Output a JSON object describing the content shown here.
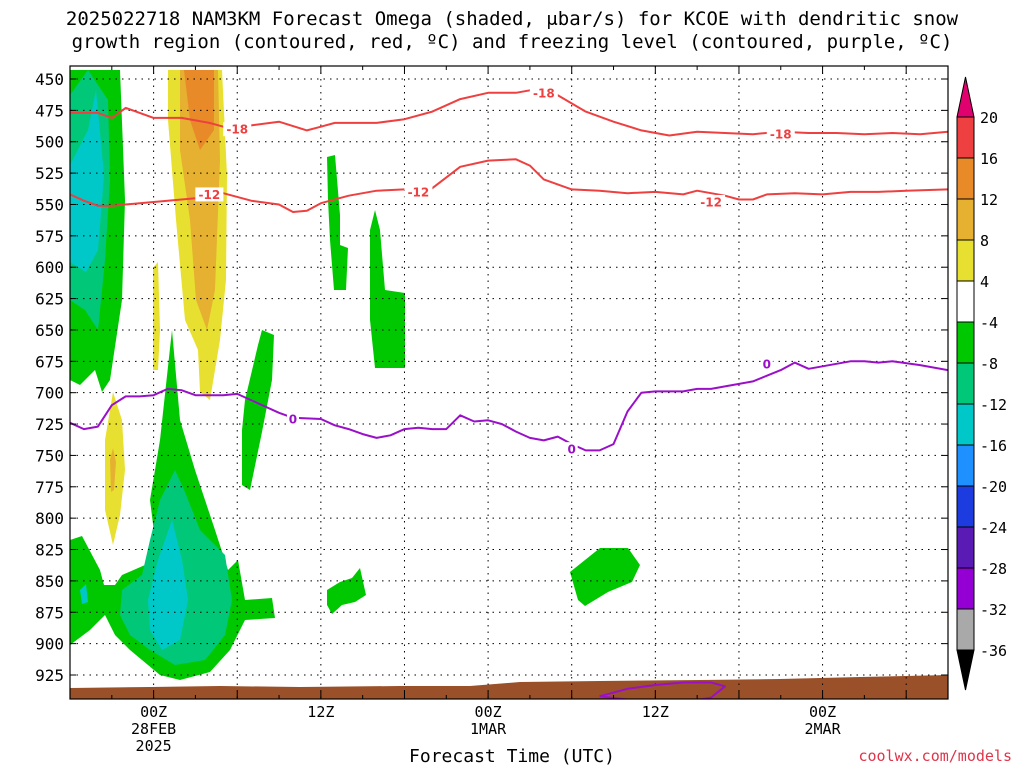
{
  "title": {
    "line1": "2025022718 NAM3KM Forecast Omega (shaded, μbar/s) for KCOE with dendritic snow",
    "line2": "growth region (contoured, red, ºC) and freezing level (contoured, purple, ºC)"
  },
  "xaxis_title": "Forecast Time (UTC)",
  "credit": "coolwx.com/models",
  "chart_data": {
    "type": "heatmap",
    "x_unit": "forecast hour from 2025022718",
    "y_unit": "hPa",
    "xlim": [
      0,
      63
    ],
    "y_ticks": [
      450,
      475,
      500,
      525,
      550,
      575,
      600,
      625,
      650,
      675,
      700,
      725,
      750,
      775,
      800,
      825,
      850,
      875,
      900,
      925
    ],
    "x_ticks": [
      {
        "hour": 6,
        "l1": "00Z",
        "l2": "28FEB",
        "l3": "2025"
      },
      {
        "hour": 18,
        "l1": "12Z",
        "l2": "",
        "l3": ""
      },
      {
        "hour": 30,
        "l1": "00Z",
        "l2": "1MAR",
        "l3": ""
      },
      {
        "hour": 42,
        "l1": "12Z",
        "l2": "",
        "l3": ""
      },
      {
        "hour": 54,
        "l1": "00Z",
        "l2": "2MAR",
        "l3": ""
      }
    ],
    "grid": true,
    "colorbar": {
      "levels": [
        -36,
        -32,
        -28,
        -24,
        -20,
        -16,
        -12,
        -8,
        -4,
        4,
        8,
        12,
        16,
        20
      ],
      "colors": [
        "#000000",
        "#a9a9a9",
        "#9400d3",
        "#5a1ab4",
        "#1c3ce0",
        "#1e90ff",
        "#00c8c8",
        "#00c878",
        "#00c800",
        "#ffffff",
        "#e8e030",
        "#e6b030",
        "#e88a28",
        "#ee4040",
        "#e0006e"
      ]
    },
    "contours": [
      {
        "label": "-18",
        "color": "#ee4040",
        "pts": [
          [
            0,
            477
          ],
          [
            2,
            477
          ],
          [
            3,
            481
          ],
          [
            4,
            473
          ],
          [
            6,
            481
          ],
          [
            8,
            481
          ],
          [
            10,
            485
          ],
          [
            11,
            488
          ],
          [
            13,
            487
          ],
          [
            15,
            484
          ],
          [
            17,
            491
          ],
          [
            18,
            488
          ],
          [
            19,
            485
          ],
          [
            22,
            485
          ],
          [
            24,
            482
          ],
          [
            26,
            476
          ],
          [
            28,
            466
          ],
          [
            30,
            461
          ],
          [
            32,
            461
          ],
          [
            33,
            459
          ],
          [
            34,
            458
          ],
          [
            35,
            463
          ],
          [
            37,
            476
          ],
          [
            39,
            484
          ],
          [
            41,
            491
          ],
          [
            43,
            495
          ],
          [
            45,
            492
          ],
          [
            47,
            493
          ],
          [
            49,
            494
          ],
          [
            51,
            492
          ],
          [
            53,
            493
          ],
          [
            55,
            493
          ],
          [
            57,
            494
          ],
          [
            59,
            493
          ],
          [
            61,
            494
          ],
          [
            63,
            492
          ]
        ],
        "label_pos": [
          [
            12,
            490
          ],
          [
            34,
            461
          ],
          [
            51,
            494
          ]
        ]
      },
      {
        "label": "-12",
        "color": "#ee4040",
        "pts": [
          [
            0,
            542
          ],
          [
            1,
            547
          ],
          [
            2,
            551
          ],
          [
            3,
            551
          ],
          [
            5,
            549
          ],
          [
            7,
            547
          ],
          [
            9,
            545
          ],
          [
            10,
            540
          ],
          [
            11,
            541
          ],
          [
            13,
            547
          ],
          [
            15,
            550
          ],
          [
            16,
            556
          ],
          [
            17,
            555
          ],
          [
            18,
            549
          ],
          [
            20,
            543
          ],
          [
            22,
            539
          ],
          [
            24,
            538
          ],
          [
            26,
            537
          ],
          [
            28,
            520
          ],
          [
            30,
            515
          ],
          [
            32,
            514
          ],
          [
            33,
            519
          ],
          [
            34,
            530
          ],
          [
            36,
            538
          ],
          [
            38,
            539
          ],
          [
            40,
            541
          ],
          [
            42,
            540
          ],
          [
            44,
            542
          ],
          [
            45,
            539
          ],
          [
            46,
            541
          ],
          [
            47,
            543
          ],
          [
            48,
            546
          ],
          [
            49,
            546
          ],
          [
            50,
            542
          ],
          [
            52,
            541
          ],
          [
            54,
            542
          ],
          [
            56,
            540
          ],
          [
            58,
            540
          ],
          [
            60,
            539
          ],
          [
            63,
            538
          ]
        ],
        "label_pos": [
          [
            10,
            542
          ],
          [
            25,
            540
          ],
          [
            46,
            548
          ]
        ]
      },
      {
        "label": "0",
        "color": "#9a10c8",
        "pts": [
          [
            0,
            724
          ],
          [
            1,
            729
          ],
          [
            2,
            727
          ],
          [
            3,
            710
          ],
          [
            4,
            703
          ],
          [
            5,
            703
          ],
          [
            6,
            702
          ],
          [
            7,
            697
          ],
          [
            8,
            698
          ],
          [
            9,
            702
          ],
          [
            11,
            702
          ],
          [
            12,
            701
          ],
          [
            14,
            711
          ],
          [
            15,
            716
          ],
          [
            16,
            720
          ],
          [
            18,
            721
          ],
          [
            19,
            726
          ],
          [
            20,
            729
          ],
          [
            21,
            733
          ],
          [
            22,
            736
          ],
          [
            23,
            734
          ],
          [
            24,
            729
          ],
          [
            25,
            728
          ],
          [
            26,
            729
          ],
          [
            27,
            729
          ],
          [
            28,
            718
          ],
          [
            29,
            723
          ],
          [
            30,
            722
          ],
          [
            31,
            725
          ],
          [
            32,
            731
          ],
          [
            33,
            736
          ],
          [
            34,
            738
          ],
          [
            35,
            735
          ],
          [
            36,
            741
          ],
          [
            37,
            746
          ],
          [
            38,
            746
          ],
          [
            39,
            741
          ],
          [
            40,
            715
          ],
          [
            41,
            700
          ],
          [
            42,
            699
          ],
          [
            43,
            699
          ],
          [
            44,
            699
          ],
          [
            45,
            697
          ],
          [
            46,
            697
          ],
          [
            47,
            695
          ],
          [
            49,
            691
          ],
          [
            51,
            682
          ],
          [
            52,
            676
          ],
          [
            53,
            681
          ],
          [
            54,
            679
          ],
          [
            55,
            677
          ],
          [
            56,
            675
          ],
          [
            57,
            675
          ],
          [
            58,
            676
          ],
          [
            59,
            675
          ],
          [
            61,
            678
          ],
          [
            63,
            682
          ]
        ],
        "label_pos": [
          [
            16,
            721
          ],
          [
            36,
            745
          ],
          [
            50,
            677
          ]
        ]
      },
      {
        "label": "",
        "color": "#9a10c8",
        "pts": [
          [
            38,
            942
          ],
          [
            40,
            936
          ],
          [
            42,
            933
          ],
          [
            44,
            931
          ],
          [
            46,
            931
          ],
          [
            47,
            934
          ],
          [
            46,
            943
          ],
          [
            44,
            947
          ],
          [
            41,
            946
          ],
          [
            38,
            942
          ]
        ],
        "label_pos": []
      }
    ]
  }
}
